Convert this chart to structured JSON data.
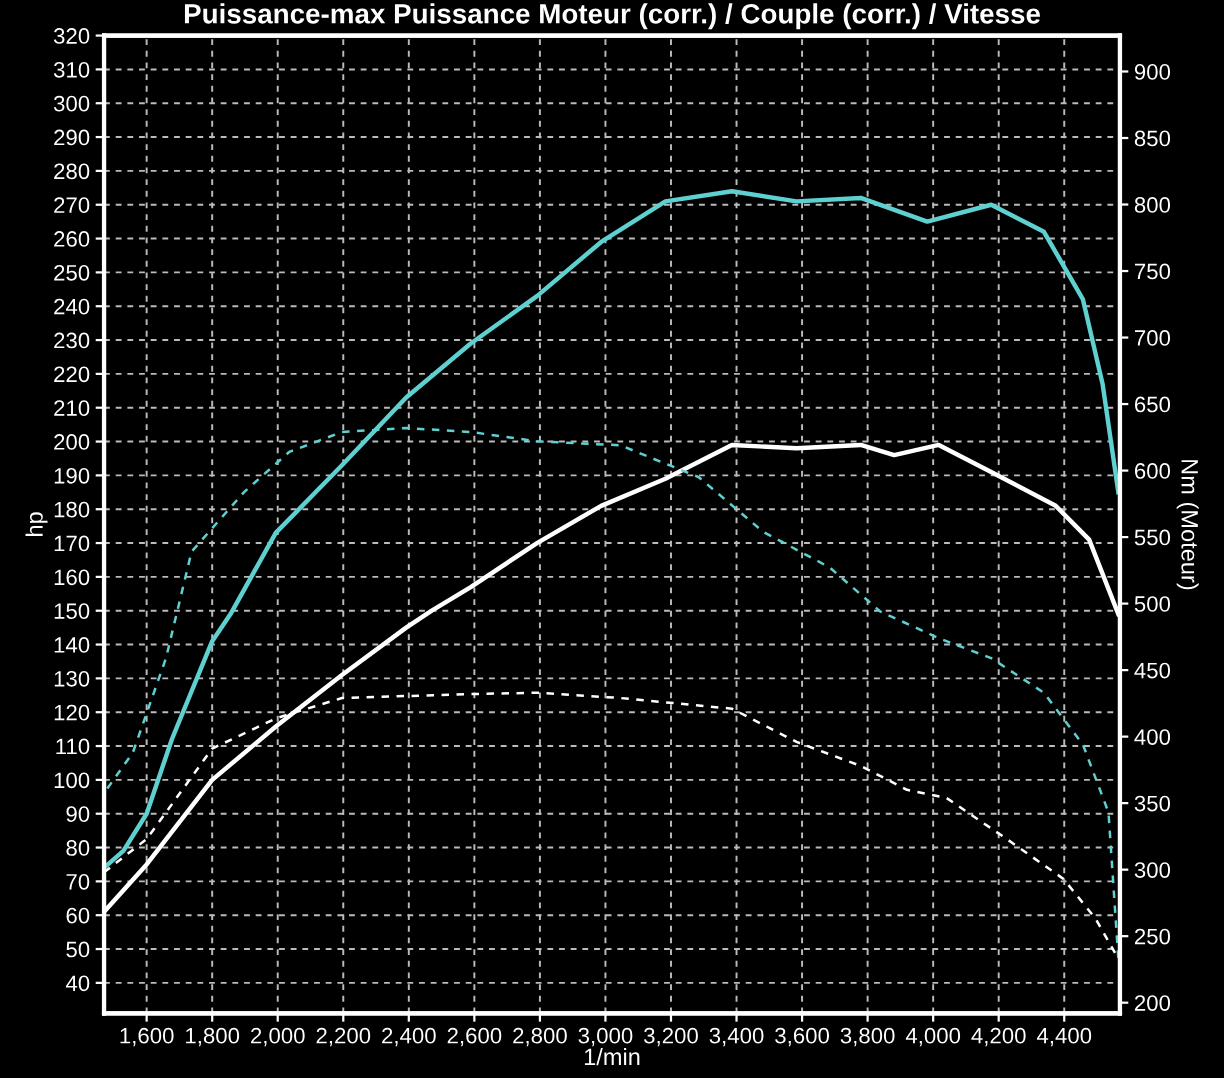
{
  "chart_data": {
    "type": "line",
    "title": "Puissance-max Puissance Moteur (corr.) / Couple (corr.) / Vitesse",
    "xlabel": "1/min",
    "ylabel": "hp",
    "y2label": "Nm (Moteur)",
    "xlim": [
      1470,
      4570
    ],
    "xticks": [
      {
        "value": 1600,
        "label": "1,600"
      },
      {
        "value": 1800,
        "label": "1,800"
      },
      {
        "value": 2000,
        "label": "2,000"
      },
      {
        "value": 2200,
        "label": "2,200"
      },
      {
        "value": 2400,
        "label": "2,400"
      },
      {
        "value": 2600,
        "label": "2,600"
      },
      {
        "value": 2800,
        "label": "2,800"
      },
      {
        "value": 3000,
        "label": "3,000"
      },
      {
        "value": 3200,
        "label": "3,200"
      },
      {
        "value": 3400,
        "label": "3,400"
      },
      {
        "value": 3600,
        "label": "3,600"
      },
      {
        "value": 3800,
        "label": "3,800"
      },
      {
        "value": 4000,
        "label": "4,000"
      },
      {
        "value": 4200,
        "label": "4,200"
      },
      {
        "value": 4400,
        "label": "4,400"
      }
    ],
    "ylim": [
      31,
      320
    ],
    "yticks": [
      40,
      50,
      60,
      70,
      80,
      90,
      100,
      110,
      120,
      130,
      140,
      150,
      160,
      170,
      180,
      190,
      200,
      210,
      220,
      230,
      240,
      250,
      260,
      270,
      280,
      290,
      300,
      310,
      320
    ],
    "y2lim": [
      192,
      927
    ],
    "y2ticks": [
      200,
      250,
      300,
      350,
      400,
      450,
      500,
      550,
      600,
      650,
      700,
      750,
      800,
      850,
      900
    ],
    "grid": true,
    "series": [
      {
        "color": "#5fd0d0",
        "line_style": "solid",
        "x": [
          1470,
          1529,
          1600,
          1677,
          1800,
          1856,
          1994,
          2196,
          2392,
          2589,
          2791,
          2987,
          3183,
          3386,
          3583,
          3779,
          3982,
          4177,
          4338,
          4457,
          4517,
          4565
        ],
        "values": [
          74,
          79,
          90,
          112,
          141,
          149,
          173,
          193,
          213,
          229,
          243,
          259,
          271,
          274,
          271,
          272,
          265,
          270,
          262,
          242,
          217,
          185
        ]
      },
      {
        "color": "#ffffff",
        "line_style": "solid",
        "x": [
          1470,
          1600,
          1800,
          1997,
          2196,
          2392,
          2470,
          2589,
          2791,
          2987,
          3183,
          3386,
          3583,
          3779,
          3881,
          4017,
          4177,
          4374,
          4476,
          4565
        ],
        "values": [
          61,
          75,
          100,
          116,
          131,
          145,
          150,
          157,
          170,
          181,
          189,
          199,
          198,
          199,
          196,
          199,
          191,
          181,
          171,
          149
        ]
      },
      {
        "color": "#5fd0d0",
        "line_style": "dashed",
        "axis": "y2",
        "x": [
          1480,
          1558,
          1659,
          1737,
          1898,
          2035,
          2196,
          2392,
          2589,
          2791,
          3046,
          3285,
          3481,
          3685,
          3839,
          4017,
          4177,
          4338,
          4457,
          4535,
          4565
        ],
        "values": [
          361,
          388,
          459,
          539,
          584,
          614,
          629,
          632,
          629,
          622,
          619,
          595,
          554,
          527,
          494,
          474,
          459,
          433,
          394,
          343,
          233
        ]
      },
      {
        "color": "#ffffff",
        "line_style": "dashed",
        "axis": "y2",
        "x": [
          1470,
          1600,
          1800,
          1997,
          2196,
          2589,
          2791,
          3046,
          3386,
          3583,
          3779,
          3920,
          4040,
          4219,
          4398,
          4496,
          4565
        ],
        "values": [
          298,
          323,
          391,
          414,
          429,
          432,
          433,
          429,
          421,
          396,
          378,
          360,
          354,
          324,
          293,
          263,
          233
        ]
      }
    ]
  }
}
